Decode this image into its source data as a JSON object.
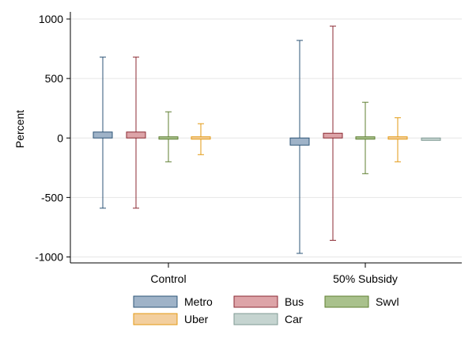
{
  "chart_data": {
    "type": "bar",
    "title": "",
    "xlabel": "",
    "ylabel": "Percent",
    "ylim": [
      -1050,
      1060
    ],
    "yticks": [
      1000,
      500,
      0,
      -500,
      -1000
    ],
    "grid": true,
    "legend_placement": "bottom",
    "categories": [
      "Control",
      "50% Subsidy"
    ],
    "series": [
      {
        "name": "Metro",
        "color": "#9fb3c8",
        "stroke": "#2e5577",
        "values": [
          50,
          -60
        ],
        "ci_low": [
          -590,
          -970
        ],
        "ci_high": [
          680,
          820
        ]
      },
      {
        "name": "Bus",
        "color": "#dda4a8",
        "stroke": "#8b2a33",
        "values": [
          50,
          40
        ],
        "ci_low": [
          -590,
          -860
        ],
        "ci_high": [
          680,
          940
        ]
      },
      {
        "name": "Swvl",
        "color": "#a9c18c",
        "stroke": "#5f7f32",
        "values": [
          15,
          0
        ],
        "ci_low": [
          -200,
          -300
        ],
        "ci_high": [
          220,
          300
        ]
      },
      {
        "name": "Uber",
        "color": "#f3cf9e",
        "stroke": "#e39a13",
        "values": [
          0,
          -10
        ],
        "ci_low": [
          -140,
          -200
        ],
        "ci_high": [
          120,
          170
        ]
      },
      {
        "name": "Car",
        "color": "#c5d4d0",
        "stroke": "#7f9a93",
        "values": [
          null,
          -20
        ],
        "ci_low": [
          null,
          null
        ],
        "ci_high": [
          null,
          null
        ]
      }
    ]
  }
}
